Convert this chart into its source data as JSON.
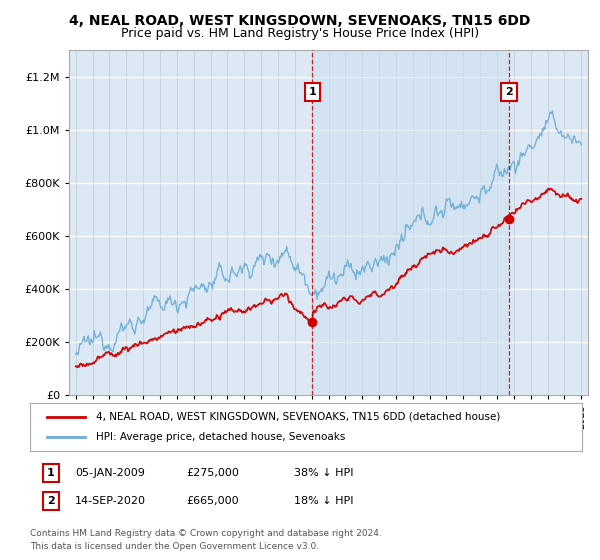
{
  "title": "4, NEAL ROAD, WEST KINGSDOWN, SEVENOAKS, TN15 6DD",
  "subtitle": "Price paid vs. HM Land Registry's House Price Index (HPI)",
  "bg_color": "#dce9f5",
  "legend_line1": "4, NEAL ROAD, WEST KINGSDOWN, SEVENOAKS, TN15 6DD (detached house)",
  "legend_line2": "HPI: Average price, detached house, Sevenoaks",
  "annotation1_label": "1",
  "annotation1_date": "05-JAN-2009",
  "annotation1_price": "£275,000",
  "annotation1_pct": "38% ↓ HPI",
  "annotation1_year": 2009.04,
  "annotation1_value": 275000,
  "annotation2_label": "2",
  "annotation2_date": "14-SEP-2020",
  "annotation2_price": "£665,000",
  "annotation2_pct": "18% ↓ HPI",
  "annotation2_year": 2020.71,
  "annotation2_value": 665000,
  "footer": "Contains HM Land Registry data © Crown copyright and database right 2024.\nThis data is licensed under the Open Government Licence v3.0.",
  "red_color": "#cc0000",
  "blue_color": "#6baed6",
  "shade_color": "#dce9f5",
  "ylim": [
    0,
    1300000
  ],
  "yticks": [
    0,
    200000,
    400000,
    600000,
    800000,
    1000000,
    1200000
  ],
  "xlim_start": 1994.6,
  "xlim_end": 2025.4
}
